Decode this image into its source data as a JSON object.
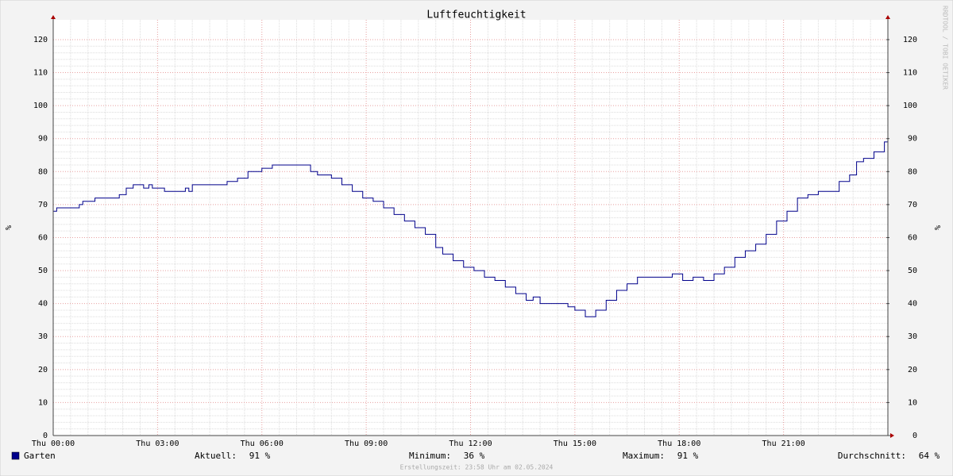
{
  "chart_data": {
    "type": "line",
    "title": "Luftfeuchtigkeit",
    "ylabel": "%",
    "y2label": "%",
    "watermark": "RRDTOOL / TOBI OETIKER",
    "footer": "Erstellungszeit: 23:58 Uhr am 02.05.2024",
    "xlim": [
      0,
      24
    ],
    "xticks": [
      {
        "value": 0,
        "label": "Thu 00:00"
      },
      {
        "value": 3,
        "label": "Thu 03:00"
      },
      {
        "value": 6,
        "label": "Thu 06:00"
      },
      {
        "value": 9,
        "label": "Thu 09:00"
      },
      {
        "value": 12,
        "label": "Thu 12:00"
      },
      {
        "value": 15,
        "label": "Thu 15:00"
      },
      {
        "value": 18,
        "label": "Thu 18:00"
      },
      {
        "value": 21,
        "label": "Thu 21:00"
      }
    ],
    "ylim": [
      0,
      126
    ],
    "yticks": [
      0,
      10,
      20,
      30,
      40,
      50,
      60,
      70,
      80,
      90,
      100,
      110,
      120
    ],
    "y2lim": [
      0,
      126
    ],
    "y2ticks": [
      0,
      10,
      20,
      30,
      40,
      50,
      60,
      70,
      80,
      90,
      100,
      110,
      120
    ],
    "grid": true,
    "x": [
      0,
      0.1,
      0.75,
      0.85,
      1.2,
      1.9,
      2.1,
      2.3,
      2.6,
      2.75,
      2.85,
      3.2,
      3.8,
      3.9,
      4.0,
      5.0,
      5.3,
      5.6,
      6.0,
      6.3,
      7.2,
      7.4,
      7.6,
      8.0,
      8.3,
      8.6,
      8.9,
      9.2,
      9.5,
      9.8,
      10.1,
      10.4,
      10.7,
      11.0,
      11.2,
      11.5,
      11.8,
      12.1,
      12.4,
      12.7,
      13.0,
      13.3,
      13.6,
      13.8,
      14.0,
      14.5,
      14.8,
      15.0,
      15.3,
      15.6,
      15.9,
      16.2,
      16.5,
      16.8,
      17.5,
      17.8,
      18.1,
      18.4,
      18.7,
      19.0,
      19.3,
      19.6,
      19.9,
      20.2,
      20.5,
      20.8,
      21.1,
      21.4,
      21.7,
      22.0,
      22.3,
      22.6,
      22.9,
      23.1,
      23.3,
      23.6,
      23.9,
      24.0
    ],
    "series": [
      {
        "name": "Garten",
        "color": "#00008b",
        "values": [
          68,
          69,
          70,
          71,
          72,
          73,
          75,
          76,
          75,
          76,
          75,
          74,
          75,
          74,
          76,
          77,
          78,
          80,
          81,
          82,
          82,
          80,
          79,
          78,
          76,
          74,
          72,
          71,
          69,
          67,
          65,
          63,
          61,
          57,
          55,
          53,
          51,
          50,
          48,
          47,
          45,
          43,
          41,
          42,
          40,
          40,
          39,
          38,
          36,
          38,
          41,
          44,
          46,
          48,
          48,
          49,
          47,
          48,
          47,
          49,
          51,
          54,
          56,
          58,
          61,
          65,
          68,
          72,
          73,
          74,
          74,
          77,
          79,
          83,
          84,
          86,
          89,
          91
        ]
      }
    ],
    "legend": [
      {
        "label": "Aktuell:",
        "value": "91 %"
      },
      {
        "label": "Minimum:",
        "value": "36 %"
      },
      {
        "label": "Maximum:",
        "value": "91 %"
      },
      {
        "label": "Durchschnitt:",
        "value": "64 %"
      }
    ]
  }
}
